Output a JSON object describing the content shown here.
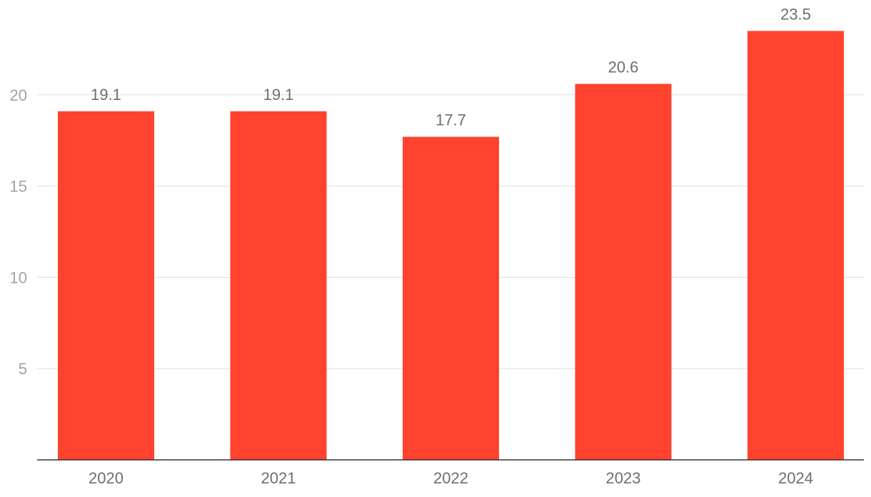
{
  "chart_data": {
    "type": "bar",
    "title": "",
    "xlabel": "",
    "ylabel": "",
    "categories": [
      "2020",
      "2021",
      "2022",
      "2023",
      "2024"
    ],
    "values": [
      19.1,
      19.1,
      17.7,
      20.6,
      23.5
    ],
    "value_labels": [
      "19.1",
      "19.1",
      "17.7",
      "20.6",
      "23.5"
    ],
    "ylim": [
      0,
      25
    ],
    "yticks": [
      5,
      10,
      15,
      20
    ],
    "ytick_labels": [
      "5",
      "10",
      "15",
      "20"
    ],
    "grid": true,
    "legend": "none",
    "colors": {
      "bar": "#ff432e",
      "grid": "#dddddd",
      "axis": "#333333",
      "tick_text": "#a3a3a3",
      "label_text": "#6e6e6e"
    }
  }
}
